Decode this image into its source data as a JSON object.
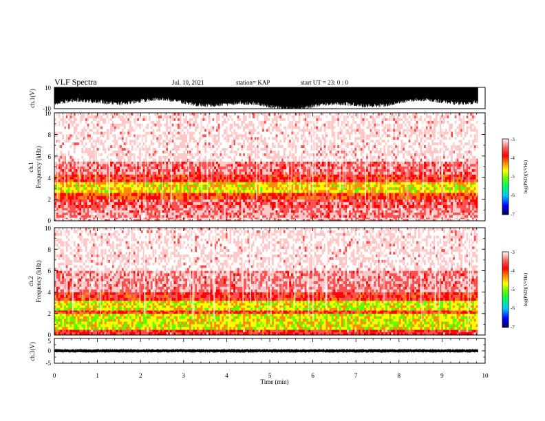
{
  "header": {
    "title": "VLF Spectra",
    "date": "Jul. 10, 2021",
    "station": "station= KAP",
    "start_ut": "start UT = 23: 0 : 0"
  },
  "colors": {
    "spectrogram_scale": [
      "#00005a",
      "#0000ff",
      "#00c8ff",
      "#00ff64",
      "#5aff00",
      "#ffff00",
      "#ff8c00",
      "#ff0000",
      "#ff5050",
      "#ffc8c8",
      "#ffffff"
    ],
    "waveform": "#000000",
    "axes": "#000000"
  },
  "chart_data": [
    {
      "type": "line",
      "panel": "ch1-waveform",
      "ylabel": "ch.1(V)",
      "ylim": [
        -10,
        10
      ],
      "yticks": [
        "10",
        "-10"
      ],
      "xlim": [
        0,
        10
      ],
      "description_values": {
        "envelope_top": 10,
        "envelope_bottom_min": -10,
        "typical_low": -6,
        "typical_high": 9
      },
      "legend": "none",
      "grid": false
    },
    {
      "type": "heatmap",
      "panel": "ch1-spectrogram",
      "ylabel": "ch.1\nFrequency (kHz)",
      "ylabel_lines": [
        "ch.1",
        "Frequency (kHz)"
      ],
      "ylim": [
        0,
        10
      ],
      "yticks": [
        "0",
        "2",
        "4",
        "6",
        "8",
        "10"
      ],
      "xlim": [
        0,
        9.83
      ],
      "colorbar": {
        "label": "log(PSD)(V²/Hz)",
        "range": [
          -7,
          -3
        ],
        "ticks": [
          "-3",
          "-4",
          "-5",
          "-6",
          "-7"
        ]
      },
      "bands_khz": [
        {
          "from": 0.0,
          "to": 0.3,
          "level": -3.4
        },
        {
          "from": 0.3,
          "to": 1.2,
          "level": -3.6
        },
        {
          "from": 1.2,
          "to": 2.0,
          "level": -3.8
        },
        {
          "from": 2.0,
          "to": 2.6,
          "level": -4.3
        },
        {
          "from": 2.6,
          "to": 3.6,
          "level": -4.9
        },
        {
          "from": 3.6,
          "to": 4.3,
          "level": -4.1
        },
        {
          "from": 4.3,
          "to": 5.5,
          "level": -3.7
        },
        {
          "from": 5.5,
          "to": 10.0,
          "level": -3.2
        }
      ]
    },
    {
      "type": "heatmap",
      "panel": "ch2-spectrogram",
      "ylabel_lines": [
        "ch.2",
        "Frequency (kHz)"
      ],
      "ylim": [
        0,
        10
      ],
      "yticks": [
        "0",
        "2",
        "4",
        "6",
        "8",
        "10"
      ],
      "xlim": [
        0,
        9.83
      ],
      "colorbar": {
        "label": "log(PSD)(V²/Hz)",
        "range": [
          -7,
          -3
        ],
        "ticks": [
          "-3",
          "-4",
          "-5",
          "-6",
          "-7"
        ]
      },
      "bands_khz": [
        {
          "from": 0.0,
          "to": 0.5,
          "level": -4.0
        },
        {
          "from": 0.5,
          "to": 2.0,
          "level": -5.0
        },
        {
          "from": 2.0,
          "to": 2.3,
          "level": -4.2
        },
        {
          "from": 2.3,
          "to": 3.2,
          "level": -5.0
        },
        {
          "from": 3.2,
          "to": 4.0,
          "level": -4.1
        },
        {
          "from": 4.0,
          "to": 6.0,
          "level": -3.6
        },
        {
          "from": 6.0,
          "to": 10.0,
          "level": -3.2
        }
      ]
    },
    {
      "type": "line",
      "panel": "ch3-waveform",
      "ylabel": "ch.3(V)",
      "ylim": [
        -5,
        5
      ],
      "yticks": [
        "5",
        "0",
        "-5"
      ],
      "xlim": [
        0,
        10
      ],
      "xlabel": "Time (min)",
      "xticks": [
        "0",
        "1",
        "2",
        "3",
        "4",
        "5",
        "6",
        "7",
        "8",
        "9",
        "10"
      ],
      "description_values": {
        "center": 0,
        "amplitude": 0.6
      },
      "legend": "none",
      "grid": false
    }
  ]
}
